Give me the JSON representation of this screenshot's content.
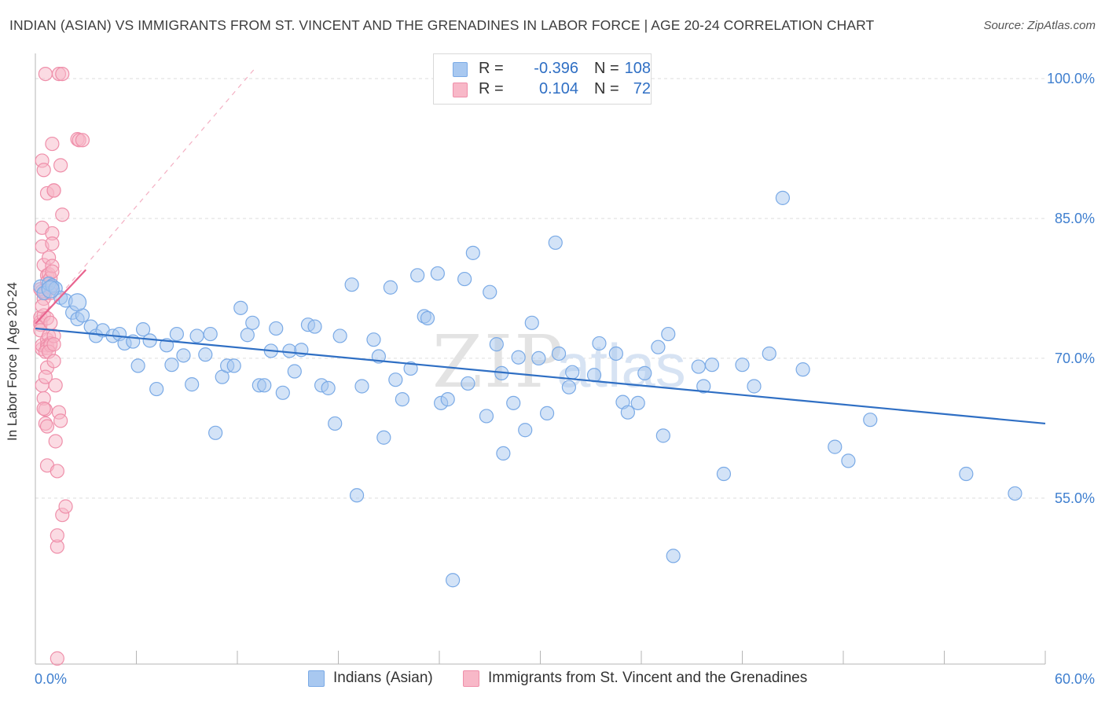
{
  "header": {
    "title": "INDIAN (ASIAN) VS IMMIGRANTS FROM ST. VINCENT AND THE GRENADINES IN LABOR FORCE | AGE 20-24 CORRELATION CHART",
    "source": "Source: ZipAtlas.com"
  },
  "legend": {
    "rows": [
      {
        "r_label": "R =",
        "r_value": "-0.396",
        "n_label": "N =",
        "n_value": "108"
      },
      {
        "r_label": "R =",
        "r_value": "0.104",
        "n_label": "N =",
        "n_value": "72"
      }
    ]
  },
  "bottom_legend": {
    "series1": "Indians (Asian)",
    "series2": "Immigrants from St. Vincent and the Grenadines"
  },
  "watermark": {
    "zip": "ZIP",
    "atlas": "atlas"
  },
  "colors": {
    "blue_fill": "#a8c8f0",
    "blue_stroke": "#7aaae6",
    "blue_line": "#2f6fc4",
    "pink_fill": "#f8b8c8",
    "pink_stroke": "#ef8faa",
    "pink_line": "#e8638e",
    "axis_text": "#3f7fcf",
    "grid": "#dddddd"
  },
  "chart_data": {
    "type": "scatter",
    "title": "INDIAN (ASIAN) VS IMMIGRANTS FROM ST. VINCENT AND THE GRENADINES IN LABOR FORCE | AGE 20-24 CORRELATION CHART",
    "xlabel": "",
    "ylabel": "In Labor Force | Age 20-24",
    "xlim": [
      0,
      60
    ],
    "ylim": [
      37.2,
      102.7
    ],
    "x_tick_labels": [
      "0.0%",
      "60.0%"
    ],
    "y_ticks": [
      55,
      70,
      85,
      100
    ],
    "y_tick_labels": [
      "55.0%",
      "70.0%",
      "85.0%",
      "100.0%"
    ],
    "grid": true,
    "legend_position": "top-center",
    "series": [
      {
        "name": "Indians (Asian)",
        "r": -0.396,
        "n": 108,
        "trend": {
          "x": [
            0,
            60
          ],
          "y": [
            73.2,
            63.0
          ]
        },
        "points": [
          [
            0.3,
            77.7
          ],
          [
            0.5,
            77.0
          ],
          [
            0.8,
            78.0
          ],
          [
            1.0,
            77.8
          ],
          [
            1.2,
            77.5
          ],
          [
            1.5,
            76.5
          ],
          [
            1.8,
            76.2
          ],
          [
            2.2,
            74.9
          ],
          [
            2.5,
            74.2
          ],
          [
            2.8,
            74.6
          ],
          [
            3.3,
            73.4
          ],
          [
            3.6,
            72.4
          ],
          [
            4.0,
            73.0
          ],
          [
            4.6,
            72.4
          ],
          [
            5.0,
            72.6
          ],
          [
            5.3,
            71.6
          ],
          [
            5.8,
            71.8
          ],
          [
            6.1,
            69.2
          ],
          [
            6.4,
            73.1
          ],
          [
            6.8,
            71.9
          ],
          [
            7.2,
            66.7
          ],
          [
            7.8,
            71.4
          ],
          [
            8.1,
            69.3
          ],
          [
            8.4,
            72.6
          ],
          [
            8.8,
            70.3
          ],
          [
            9.3,
            67.2
          ],
          [
            9.6,
            72.4
          ],
          [
            10.1,
            70.4
          ],
          [
            10.4,
            72.6
          ],
          [
            10.7,
            62.0
          ],
          [
            11.1,
            68.0
          ],
          [
            11.4,
            69.2
          ],
          [
            11.8,
            69.2
          ],
          [
            12.2,
            75.4
          ],
          [
            12.6,
            72.5
          ],
          [
            12.9,
            73.8
          ],
          [
            13.3,
            67.1
          ],
          [
            13.6,
            67.1
          ],
          [
            14.0,
            70.8
          ],
          [
            14.3,
            73.2
          ],
          [
            14.7,
            66.3
          ],
          [
            15.1,
            70.8
          ],
          [
            15.4,
            68.6
          ],
          [
            15.8,
            70.9
          ],
          [
            16.2,
            73.6
          ],
          [
            16.6,
            73.4
          ],
          [
            17.0,
            67.1
          ],
          [
            17.4,
            66.8
          ],
          [
            17.8,
            63.0
          ],
          [
            18.1,
            72.4
          ],
          [
            18.8,
            77.9
          ],
          [
            19.1,
            55.3
          ],
          [
            19.4,
            67.0
          ],
          [
            20.1,
            72.0
          ],
          [
            20.4,
            70.2
          ],
          [
            20.7,
            61.5
          ],
          [
            21.1,
            77.6
          ],
          [
            21.4,
            67.7
          ],
          [
            21.8,
            65.6
          ],
          [
            22.3,
            68.9
          ],
          [
            22.7,
            78.9
          ],
          [
            23.1,
            74.5
          ],
          [
            23.3,
            74.3
          ],
          [
            23.9,
            79.1
          ],
          [
            24.1,
            65.2
          ],
          [
            24.5,
            65.6
          ],
          [
            24.8,
            46.2
          ],
          [
            25.5,
            78.5
          ],
          [
            25.7,
            67.3
          ],
          [
            26.0,
            81.3
          ],
          [
            26.8,
            63.8
          ],
          [
            27.0,
            77.1
          ],
          [
            27.4,
            71.5
          ],
          [
            27.7,
            68.4
          ],
          [
            27.8,
            59.8
          ],
          [
            28.4,
            65.2
          ],
          [
            28.7,
            70.1
          ],
          [
            29.1,
            62.3
          ],
          [
            29.5,
            73.8
          ],
          [
            29.9,
            70.0
          ],
          [
            30.4,
            64.1
          ],
          [
            30.9,
            82.4
          ],
          [
            31.1,
            70.5
          ],
          [
            31.7,
            66.9
          ],
          [
            31.9,
            68.5
          ],
          [
            33.2,
            68.2
          ],
          [
            33.5,
            71.6
          ],
          [
            34.5,
            70.5
          ],
          [
            34.9,
            65.3
          ],
          [
            35.2,
            64.2
          ],
          [
            35.8,
            65.2
          ],
          [
            36.2,
            68.4
          ],
          [
            37.0,
            71.2
          ],
          [
            37.3,
            61.7
          ],
          [
            37.6,
            72.6
          ],
          [
            37.9,
            48.8
          ],
          [
            39.4,
            69.1
          ],
          [
            39.7,
            67.0
          ],
          [
            40.2,
            69.3
          ],
          [
            40.9,
            57.6
          ],
          [
            42.0,
            69.3
          ],
          [
            42.7,
            67.0
          ],
          [
            43.6,
            70.5
          ],
          [
            44.4,
            87.2
          ],
          [
            45.6,
            68.8
          ],
          [
            47.5,
            60.5
          ],
          [
            48.3,
            59.0
          ],
          [
            49.6,
            63.4
          ],
          [
            55.3,
            57.6
          ],
          [
            58.2,
            55.5
          ]
        ]
      },
      {
        "name": "Immigrants from St. Vincent and the Grenadines",
        "r": 0.104,
        "n": 72,
        "trend": {
          "x": [
            0,
            3.0
          ],
          "y": [
            73.7,
            79.5
          ]
        },
        "trend_extension": {
          "x": [
            0,
            13.0
          ],
          "y": [
            73.7,
            101.0
          ]
        },
        "points": [
          [
            0.3,
            73.9
          ],
          [
            0.3,
            74.4
          ],
          [
            0.3,
            73.6
          ],
          [
            0.4,
            71.0
          ],
          [
            0.4,
            71.4
          ],
          [
            0.3,
            73.0
          ],
          [
            0.5,
            74.6
          ],
          [
            0.5,
            76.4
          ],
          [
            0.4,
            75.6
          ],
          [
            0.4,
            77.2
          ],
          [
            0.3,
            77.4
          ],
          [
            0.4,
            67.1
          ],
          [
            0.5,
            65.7
          ],
          [
            0.6,
            64.5
          ],
          [
            0.5,
            64.6
          ],
          [
            0.5,
            80.0
          ],
          [
            0.4,
            82.0
          ],
          [
            0.4,
            84.0
          ],
          [
            0.4,
            91.2
          ],
          [
            0.5,
            90.2
          ],
          [
            0.6,
            100.5
          ],
          [
            0.7,
            78.9
          ],
          [
            0.7,
            78.2
          ],
          [
            0.6,
            77.0
          ],
          [
            0.7,
            74.3
          ],
          [
            0.7,
            72.0
          ],
          [
            0.7,
            71.4
          ],
          [
            0.7,
            71.1
          ],
          [
            0.6,
            70.7
          ],
          [
            0.7,
            69.0
          ],
          [
            0.6,
            68.0
          ],
          [
            0.6,
            63.0
          ],
          [
            0.7,
            62.7
          ],
          [
            0.7,
            58.5
          ],
          [
            0.7,
            87.7
          ],
          [
            0.8,
            80.8
          ],
          [
            0.8,
            79.0
          ],
          [
            0.9,
            78.6
          ],
          [
            0.9,
            77.6
          ],
          [
            0.9,
            77.0
          ],
          [
            0.9,
            73.8
          ],
          [
            0.8,
            72.4
          ],
          [
            0.9,
            71.6
          ],
          [
            0.9,
            71.4
          ],
          [
            0.8,
            70.7
          ],
          [
            1.0,
            83.4
          ],
          [
            1.0,
            82.3
          ],
          [
            1.1,
            88.0
          ],
          [
            1.1,
            88.0
          ],
          [
            1.0,
            79.9
          ],
          [
            1.0,
            79.3
          ],
          [
            1.0,
            93.0
          ],
          [
            1.1,
            72.4
          ],
          [
            1.1,
            71.5
          ],
          [
            1.1,
            69.7
          ],
          [
            1.2,
            67.1
          ],
          [
            1.2,
            61.1
          ],
          [
            1.3,
            57.9
          ],
          [
            1.3,
            49.8
          ],
          [
            1.3,
            51.0
          ],
          [
            1.4,
            64.2
          ],
          [
            1.5,
            63.3
          ],
          [
            1.5,
            90.7
          ],
          [
            1.4,
            100.5
          ],
          [
            1.6,
            100.5
          ],
          [
            1.6,
            85.4
          ],
          [
            1.6,
            53.2
          ],
          [
            1.8,
            54.1
          ],
          [
            2.5,
            93.5
          ],
          [
            2.6,
            93.4
          ],
          [
            2.8,
            93.4
          ],
          [
            1.3,
            37.8
          ]
        ]
      }
    ]
  }
}
